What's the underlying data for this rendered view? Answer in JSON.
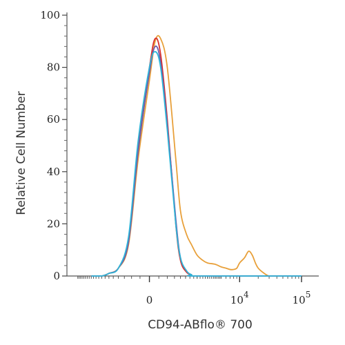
{
  "chart_data": {
    "type": "line",
    "title": "",
    "xlabel": "CD94-ABflo® 700",
    "ylabel": "Relative Cell Number",
    "x_scale": "biexponential",
    "ylim": [
      0,
      100
    ],
    "y_ticks": [
      0,
      20,
      40,
      60,
      80,
      100
    ],
    "x_ticks": [
      {
        "label": "0",
        "value": 0
      },
      {
        "label": "10",
        "sup": "4",
        "value": 10000
      },
      {
        "label": "10",
        "sup": "5",
        "value": 100000
      }
    ],
    "grid": false,
    "legend": "none",
    "series": [
      {
        "color": "#e8a03a",
        "x": [
          -3000,
          -2000,
          -1500,
          -1000,
          -600,
          -300,
          0,
          150,
          300,
          500,
          800,
          1000,
          1300,
          1600,
          2000,
          2500,
          3000,
          4000,
          5000,
          6000,
          7000,
          8000,
          9000,
          10000,
          12000,
          14000,
          16000,
          18000,
          20000,
          25000,
          30000,
          40000,
          50000,
          100000
        ],
        "y": [
          0,
          0,
          1,
          3,
          12,
          45,
          75,
          90,
          91,
          80,
          45,
          25,
          16,
          12,
          8,
          6,
          5,
          4.5,
          3.5,
          3,
          2.5,
          2.5,
          3,
          5,
          7,
          9.5,
          8,
          5,
          3,
          1,
          0,
          0,
          0,
          0
        ]
      },
      {
        "color": "#d9302c",
        "x": [
          -3000,
          -2000,
          -1500,
          -1000,
          -600,
          -300,
          0,
          150,
          300,
          500,
          800,
          1000,
          1300,
          1600,
          2000,
          100000
        ],
        "y": [
          0,
          0,
          1,
          3,
          14,
          50,
          80,
          91,
          85,
          60,
          20,
          6,
          1.5,
          0.5,
          0,
          0
        ]
      },
      {
        "color": "#6f57a8",
        "x": [
          -3000,
          -2000,
          -1500,
          -1000,
          -600,
          -300,
          0,
          150,
          300,
          500,
          800,
          1000,
          1300,
          1600,
          2000,
          100000
        ],
        "y": [
          0,
          0,
          1,
          3,
          13,
          48,
          78,
          88,
          82,
          58,
          22,
          7,
          2,
          0.5,
          0,
          0
        ]
      },
      {
        "color": "#2fb5d8",
        "x": [
          -3000,
          -2000,
          -1500,
          -1000,
          -600,
          -300,
          0,
          150,
          300,
          500,
          800,
          1000,
          1300,
          1600,
          2000,
          100000
        ],
        "y": [
          0,
          0,
          1,
          3,
          15,
          52,
          80,
          86,
          80,
          56,
          20,
          7,
          2,
          0.5,
          0,
          0
        ]
      }
    ]
  }
}
